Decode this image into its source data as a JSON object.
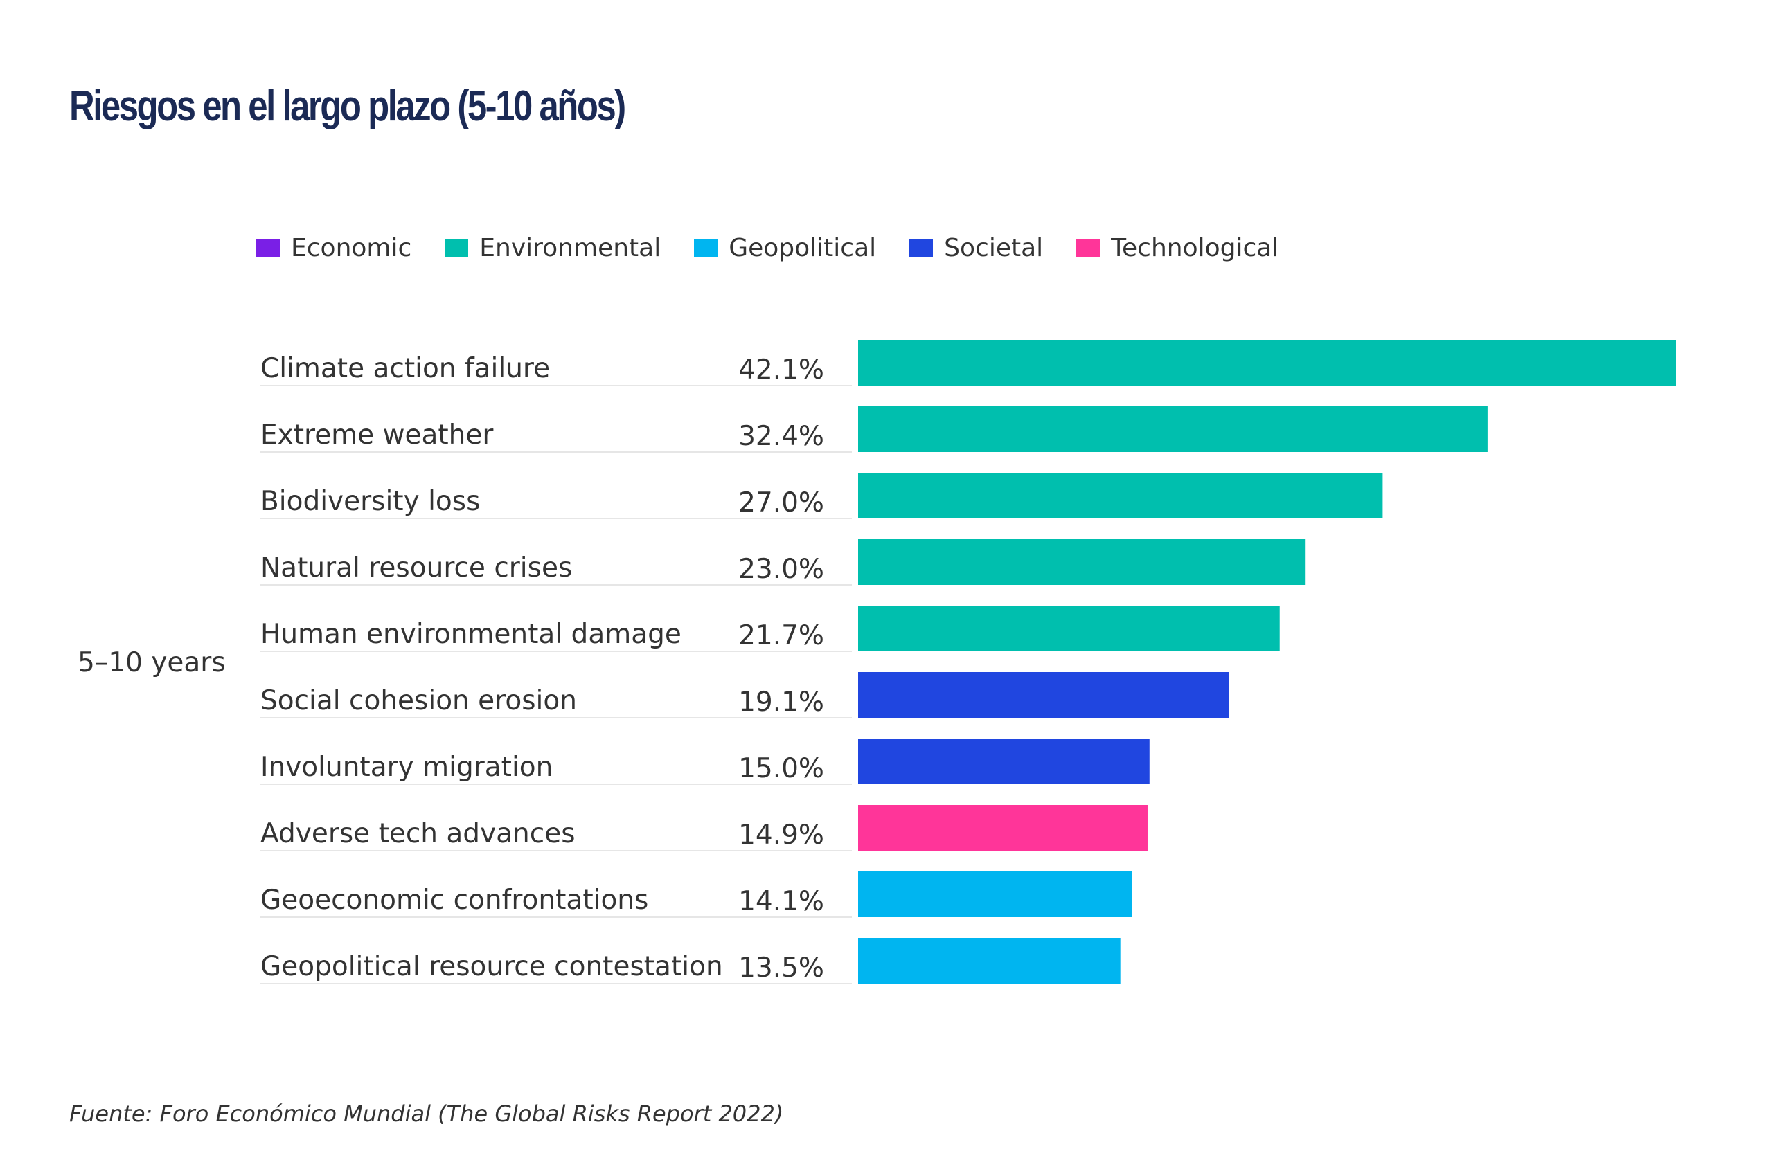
{
  "title": "Riesgos en el largo plazo (5-10 años)",
  "legend": [
    {
      "label": "Economic",
      "color": "#7a1fe6"
    },
    {
      "label": "Environmental",
      "color": "#00bfae"
    },
    {
      "label": "Geopolitical",
      "color": "#00b5f0"
    },
    {
      "label": "Societal",
      "color": "#2046e0"
    },
    {
      "label": "Technological",
      "color": "#ff3599"
    }
  ],
  "source": "Fuente: Foro Económico Mundial (The Global Risks Report 2022)",
  "chart_data": {
    "type": "bar",
    "orientation": "horizontal",
    "title": "Riesgos en el largo plazo (5-10 años)",
    "group_label": "5–10 years",
    "categories": [
      "Climate action failure",
      "Extreme weather",
      "Biodiversity loss",
      "Natural resource crises",
      "Human environmental damage",
      "Social cohesion erosion",
      "Involuntary migration",
      "Adverse tech advances",
      "Geoeconomic confrontations",
      "Geopolitical resource contestation"
    ],
    "values": [
      42.1,
      32.4,
      27.0,
      23.0,
      21.7,
      19.1,
      15.0,
      14.9,
      14.1,
      13.5
    ],
    "value_labels": [
      "42.1%",
      "32.4%",
      "27.0%",
      "23.0%",
      "21.7%",
      "19.1%",
      "15.0%",
      "14.9%",
      "14.1%",
      "13.5%"
    ],
    "category_type": [
      "Environmental",
      "Environmental",
      "Environmental",
      "Environmental",
      "Environmental",
      "Societal",
      "Societal",
      "Technological",
      "Geopolitical",
      "Geopolitical"
    ],
    "unit": "%",
    "xlim": [
      0,
      42.1
    ],
    "grid": false,
    "legend_position": "top"
  }
}
